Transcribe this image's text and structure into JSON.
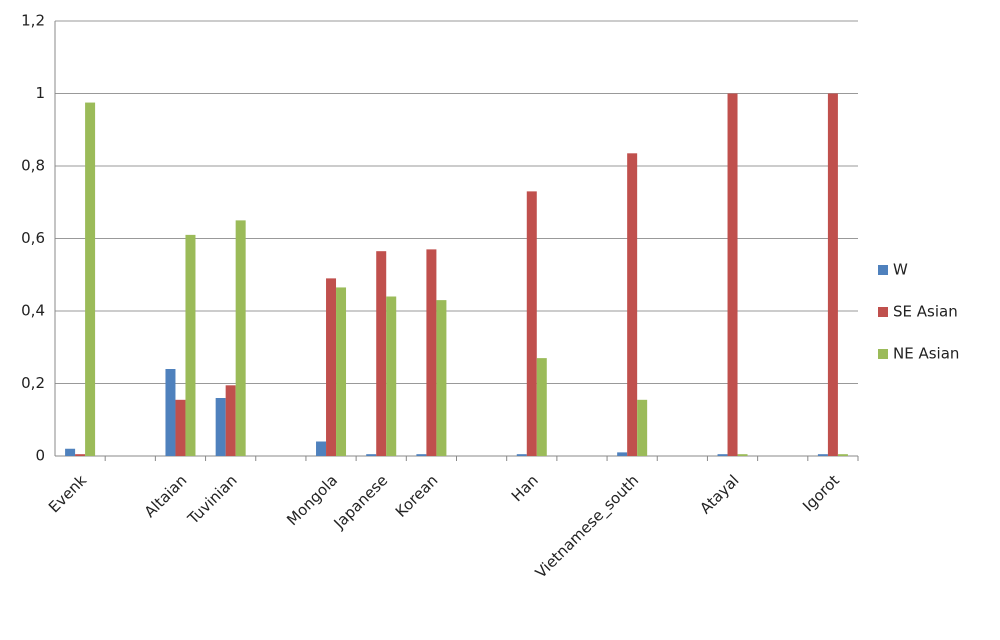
{
  "chart_data": {
    "type": "bar",
    "categories": [
      "Evenk",
      null,
      "Altaian",
      "Tuvinian",
      null,
      "Mongola",
      "Japanese",
      "Korean",
      null,
      "Han",
      null,
      "Vietnamese_south",
      null,
      "Atayal",
      null,
      "Igorot"
    ],
    "series": [
      {
        "name": "W",
        "color": "#4f81bd",
        "values": [
          0.02,
          null,
          0.24,
          0.16,
          null,
          0.04,
          0.005,
          0.005,
          null,
          0.005,
          null,
          0.01,
          null,
          0.005,
          null,
          0.005
        ]
      },
      {
        "name": "SE Asian",
        "color": "#c0504d",
        "values": [
          0.005,
          null,
          0.155,
          0.195,
          null,
          0.49,
          0.565,
          0.57,
          null,
          0.73,
          null,
          0.835,
          null,
          1,
          null,
          1
        ]
      },
      {
        "name": "NE Asian",
        "color": "#9bbb59",
        "values": [
          0.975,
          null,
          0.61,
          0.65,
          null,
          0.465,
          0.44,
          0.43,
          null,
          0.27,
          null,
          0.155,
          null,
          0.005,
          null,
          0.005
        ]
      }
    ],
    "ylim": [
      0,
      1.2
    ],
    "yticks": [
      0,
      {
        "value": 0.2,
        "label": "0,2"
      },
      {
        "value": 0.4,
        "label": "0,4"
      },
      {
        "value": 0.6,
        "label": "0,6"
      },
      {
        "value": 0.8,
        "label": "0,8"
      },
      1,
      {
        "value": 1.2,
        "label": "1,2"
      }
    ],
    "grid": true,
    "legend": "right"
  }
}
